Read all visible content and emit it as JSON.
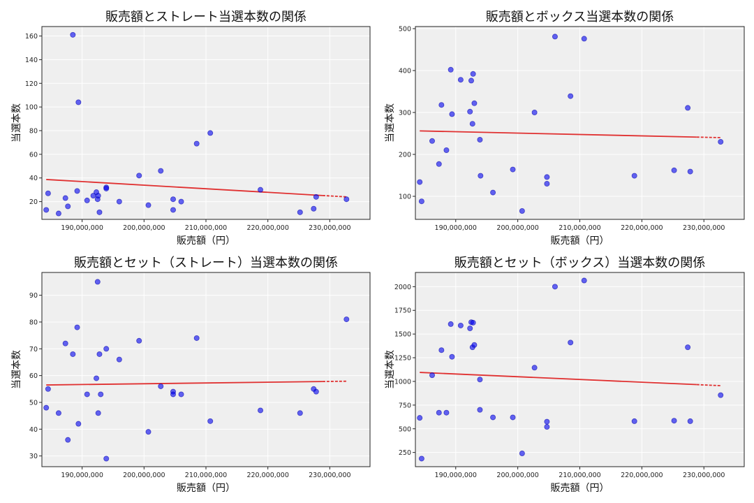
{
  "chart_data": [
    {
      "type": "scatter",
      "title": "販売額とストレート当選本数の関係",
      "xlabel": "販売額（円）",
      "ylabel": "当選本数",
      "xlim": [
        183500000,
        236500000
      ],
      "ylim": [
        5,
        168
      ],
      "xticks": [
        190000000,
        200000000,
        210000000,
        220000000,
        230000000
      ],
      "xtick_labels": [
        "190,000,000",
        "200,000,000",
        "210,000,000",
        "220,000,000",
        "230,000,000"
      ],
      "yticks": [
        20,
        40,
        60,
        80,
        100,
        120,
        140,
        160
      ],
      "ytick_labels": [
        "20",
        "40",
        "60",
        "80",
        "100",
        "120",
        "140",
        "160"
      ],
      "grid": true,
      "point_color": "#0000ee",
      "trend_color": "#e03030",
      "points": [
        {
          "x": 184200000,
          "y": 13
        },
        {
          "x": 184500000,
          "y": 27
        },
        {
          "x": 186200000,
          "y": 10
        },
        {
          "x": 187300000,
          "y": 23
        },
        {
          "x": 187700000,
          "y": 16
        },
        {
          "x": 188500000,
          "y": 161
        },
        {
          "x": 189200000,
          "y": 29
        },
        {
          "x": 189400000,
          "y": 104
        },
        {
          "x": 190800000,
          "y": 21
        },
        {
          "x": 191800000,
          "y": 25
        },
        {
          "x": 192300000,
          "y": 28
        },
        {
          "x": 192500000,
          "y": 22
        },
        {
          "x": 192600000,
          "y": 25
        },
        {
          "x": 192800000,
          "y": 11
        },
        {
          "x": 193900000,
          "y": 32
        },
        {
          "x": 193900000,
          "y": 31
        },
        {
          "x": 196000000,
          "y": 20
        },
        {
          "x": 199200000,
          "y": 42
        },
        {
          "x": 200700000,
          "y": 17
        },
        {
          "x": 202700000,
          "y": 46
        },
        {
          "x": 204700000,
          "y": 22
        },
        {
          "x": 204700000,
          "y": 13
        },
        {
          "x": 206000000,
          "y": 20
        },
        {
          "x": 208500000,
          "y": 69
        },
        {
          "x": 210700000,
          "y": 78
        },
        {
          "x": 218800000,
          "y": 30
        },
        {
          "x": 225200000,
          "y": 11
        },
        {
          "x": 227400000,
          "y": 14
        },
        {
          "x": 227800000,
          "y": 24
        },
        {
          "x": 232700000,
          "y": 22
        }
      ],
      "trend": {
        "x": [
          184200000,
          232700000
        ],
        "y": [
          38.7,
          24.0
        ]
      }
    },
    {
      "type": "scatter",
      "title": "販売額とボックス当選本数の関係",
      "xlabel": "販売額（円）",
      "ylabel": "当選本数",
      "xlim": [
        183500000,
        236500000
      ],
      "ylim": [
        45,
        505
      ],
      "xticks": [
        190000000,
        200000000,
        210000000,
        220000000,
        230000000
      ],
      "xtick_labels": [
        "190,000,000",
        "200,000,000",
        "210,000,000",
        "220,000,000",
        "230,000,000"
      ],
      "yticks": [
        100,
        200,
        300,
        400,
        500
      ],
      "ytick_labels": [
        "100",
        "200",
        "300",
        "400",
        "500"
      ],
      "grid": true,
      "point_color": "#0000ee",
      "trend_color": "#e03030",
      "points": [
        {
          "x": 184200000,
          "y": 134
        },
        {
          "x": 184500000,
          "y": 88
        },
        {
          "x": 186200000,
          "y": 232
        },
        {
          "x": 187300000,
          "y": 177
        },
        {
          "x": 187700000,
          "y": 318
        },
        {
          "x": 188500000,
          "y": 210
        },
        {
          "x": 189200000,
          "y": 402
        },
        {
          "x": 189400000,
          "y": 296
        },
        {
          "x": 190800000,
          "y": 378
        },
        {
          "x": 192300000,
          "y": 302
        },
        {
          "x": 192500000,
          "y": 376
        },
        {
          "x": 192700000,
          "y": 273
        },
        {
          "x": 192800000,
          "y": 392
        },
        {
          "x": 193000000,
          "y": 322
        },
        {
          "x": 193900000,
          "y": 235
        },
        {
          "x": 194000000,
          "y": 149
        },
        {
          "x": 196000000,
          "y": 109
        },
        {
          "x": 199200000,
          "y": 164
        },
        {
          "x": 200700000,
          "y": 65
        },
        {
          "x": 202700000,
          "y": 300
        },
        {
          "x": 204700000,
          "y": 146
        },
        {
          "x": 204700000,
          "y": 130
        },
        {
          "x": 206000000,
          "y": 481
        },
        {
          "x": 208500000,
          "y": 339
        },
        {
          "x": 210700000,
          "y": 476
        },
        {
          "x": 218800000,
          "y": 149
        },
        {
          "x": 225200000,
          "y": 162
        },
        {
          "x": 227400000,
          "y": 311
        },
        {
          "x": 227800000,
          "y": 159
        },
        {
          "x": 232700000,
          "y": 230
        }
      ],
      "trend": {
        "x": [
          184200000,
          232700000
        ],
        "y": [
          256,
          240
        ]
      }
    },
    {
      "type": "scatter",
      "title": "販売額とセット（ストレート）当選本数の関係",
      "xlabel": "販売額（円）",
      "ylabel": "当選本数",
      "xlim": [
        183500000,
        236500000
      ],
      "ylim": [
        26,
        98.5
      ],
      "xticks": [
        190000000,
        200000000,
        210000000,
        220000000,
        230000000
      ],
      "xtick_labels": [
        "190,000,000",
        "200,000,000",
        "210,000,000",
        "220,000,000",
        "230,000,000"
      ],
      "yticks": [
        30,
        40,
        50,
        60,
        70,
        80,
        90
      ],
      "ytick_labels": [
        "30",
        "40",
        "50",
        "60",
        "70",
        "80",
        "90"
      ],
      "grid": true,
      "point_color": "#0000ee",
      "trend_color": "#e03030",
      "points": [
        {
          "x": 184200000,
          "y": 48
        },
        {
          "x": 184500000,
          "y": 55
        },
        {
          "x": 186200000,
          "y": 46
        },
        {
          "x": 187300000,
          "y": 72
        },
        {
          "x": 187700000,
          "y": 36
        },
        {
          "x": 188500000,
          "y": 68
        },
        {
          "x": 189200000,
          "y": 78
        },
        {
          "x": 189400000,
          "y": 42
        },
        {
          "x": 190800000,
          "y": 53
        },
        {
          "x": 192300000,
          "y": 59
        },
        {
          "x": 192500000,
          "y": 95
        },
        {
          "x": 192600000,
          "y": 46
        },
        {
          "x": 192800000,
          "y": 68
        },
        {
          "x": 193000000,
          "y": 53
        },
        {
          "x": 193900000,
          "y": 70
        },
        {
          "x": 193900000,
          "y": 29
        },
        {
          "x": 196000000,
          "y": 66
        },
        {
          "x": 199200000,
          "y": 73
        },
        {
          "x": 200700000,
          "y": 39
        },
        {
          "x": 202700000,
          "y": 56
        },
        {
          "x": 204700000,
          "y": 54
        },
        {
          "x": 204700000,
          "y": 53
        },
        {
          "x": 206000000,
          "y": 53
        },
        {
          "x": 208500000,
          "y": 74
        },
        {
          "x": 210700000,
          "y": 43
        },
        {
          "x": 218800000,
          "y": 47
        },
        {
          "x": 225200000,
          "y": 46
        },
        {
          "x": 227400000,
          "y": 55
        },
        {
          "x": 227800000,
          "y": 54
        },
        {
          "x": 232700000,
          "y": 81
        }
      ],
      "trend": {
        "x": [
          184200000,
          232700000
        ],
        "y": [
          56.5,
          57.9
        ]
      }
    },
    {
      "type": "scatter",
      "title": "販売額とセット（ボックス）当選本数の関係",
      "xlabel": "販売額（円）",
      "ylabel": "当選本数",
      "xlim": [
        183500000,
        236500000
      ],
      "ylim": [
        100,
        2150
      ],
      "xticks": [
        190000000,
        200000000,
        210000000,
        220000000,
        230000000
      ],
      "xtick_labels": [
        "190,000,000",
        "200,000,000",
        "210,000,000",
        "220,000,000",
        "230,000,000"
      ],
      "yticks": [
        250,
        500,
        750,
        1000,
        1250,
        1500,
        1750,
        2000
      ],
      "ytick_labels": [
        "250",
        "500",
        "750",
        "1000",
        "1250",
        "1500",
        "1750",
        "2000"
      ],
      "grid": true,
      "point_color": "#0000ee",
      "trend_color": "#e03030",
      "points": [
        {
          "x": 184200000,
          "y": 615
        },
        {
          "x": 184500000,
          "y": 185
        },
        {
          "x": 186200000,
          "y": 1065
        },
        {
          "x": 187300000,
          "y": 670
        },
        {
          "x": 187700000,
          "y": 1330
        },
        {
          "x": 188500000,
          "y": 670
        },
        {
          "x": 189200000,
          "y": 1605
        },
        {
          "x": 189400000,
          "y": 1260
        },
        {
          "x": 190800000,
          "y": 1590
        },
        {
          "x": 192300000,
          "y": 1560
        },
        {
          "x": 192500000,
          "y": 1625
        },
        {
          "x": 192700000,
          "y": 1360
        },
        {
          "x": 192800000,
          "y": 1620
        },
        {
          "x": 193000000,
          "y": 1385
        },
        {
          "x": 193900000,
          "y": 1020
        },
        {
          "x": 193900000,
          "y": 700
        },
        {
          "x": 196000000,
          "y": 620
        },
        {
          "x": 199200000,
          "y": 620
        },
        {
          "x": 200700000,
          "y": 240
        },
        {
          "x": 202700000,
          "y": 1145
        },
        {
          "x": 204700000,
          "y": 575
        },
        {
          "x": 204700000,
          "y": 520
        },
        {
          "x": 206000000,
          "y": 2000
        },
        {
          "x": 208500000,
          "y": 1410
        },
        {
          "x": 210700000,
          "y": 2065
        },
        {
          "x": 218800000,
          "y": 580
        },
        {
          "x": 225200000,
          "y": 585
        },
        {
          "x": 227400000,
          "y": 1360
        },
        {
          "x": 227800000,
          "y": 580
        },
        {
          "x": 232700000,
          "y": 855
        }
      ],
      "trend": {
        "x": [
          184200000,
          232700000
        ],
        "y": [
          1095,
          955
        ]
      }
    }
  ]
}
